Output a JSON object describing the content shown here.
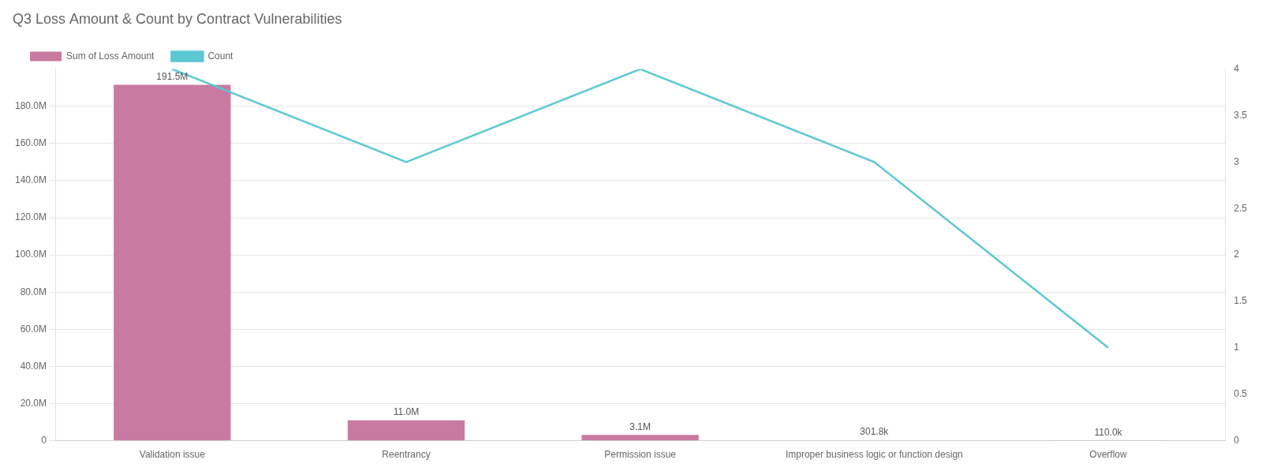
{
  "chart_data": {
    "type": "bar",
    "title": "Q3 Loss Amount & Count by Contract Vulnerabilities",
    "categories": [
      "Validation issue",
      "Reentrancy",
      "Permission issue",
      "Improper business logic or function design",
      "Overflow"
    ],
    "series": [
      {
        "name": "Sum of Loss Amount",
        "type": "bar",
        "color": "#c97aa0",
        "values": [
          191500000,
          11000000,
          3100000,
          301800,
          110000
        ],
        "value_labels": [
          "191.5M",
          "11.0M",
          "3.1M",
          "301.8k",
          "110.0k"
        ],
        "data_labels": true
      },
      {
        "name": "Count",
        "type": "line",
        "color": "#5bc8d4",
        "axis": "y2",
        "values": [
          4,
          3,
          4,
          3,
          1
        ]
      }
    ],
    "ylim": [
      0,
      200000000
    ],
    "yticks": [
      0,
      {
        "value": 20000000,
        "label": "20.0M"
      },
      {
        "value": 40000000,
        "label": "40.0M"
      },
      {
        "value": 60000000,
        "label": "60.0M"
      },
      {
        "value": 80000000,
        "label": "80.0M"
      },
      {
        "value": 100000000,
        "label": "100.0M"
      },
      {
        "value": 120000000,
        "label": "120.0M"
      },
      {
        "value": 140000000,
        "label": "140.0M"
      },
      {
        "value": 160000000,
        "label": "160.0M"
      },
      {
        "value": 180000000,
        "label": "180.0M"
      }
    ],
    "y2lim": [
      0,
      4
    ],
    "y2ticks": [
      0,
      0.5,
      1,
      1.5,
      2,
      2.5,
      3,
      3.5,
      4
    ],
    "grid": true,
    "legend": "upper left"
  }
}
